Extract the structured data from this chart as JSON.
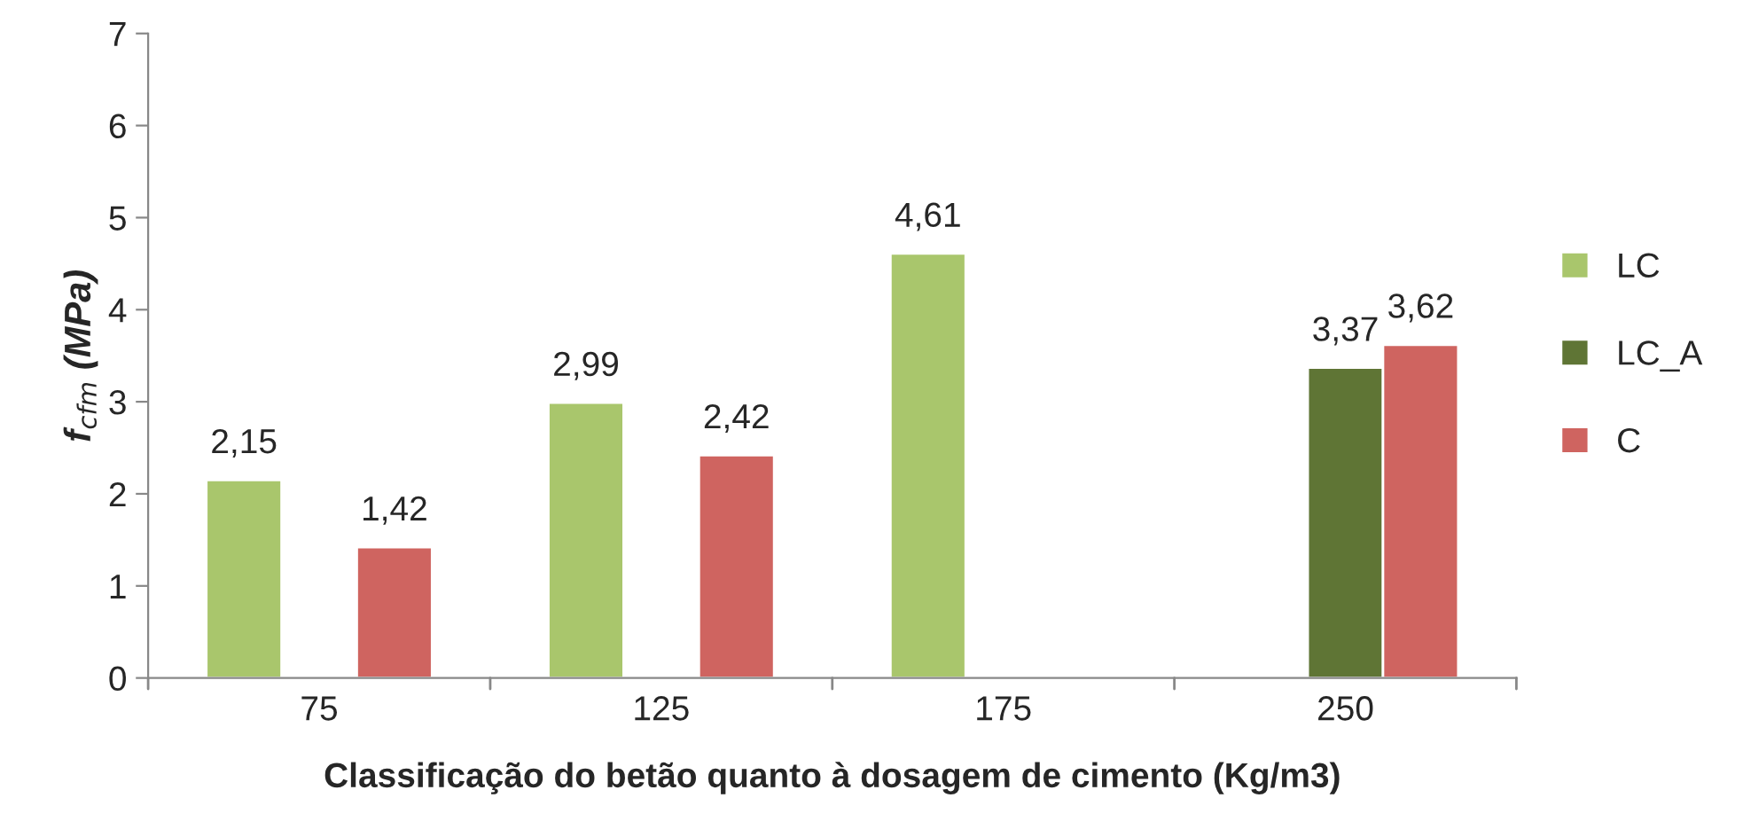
{
  "chart_data": {
    "type": "bar",
    "xlabel": "Classificação do betão quanto à dosagem de cimento (Kg/m3)",
    "ylabel": "f$_{cfm}$ (MPa)",
    "categories": [
      "75",
      "125",
      "175",
      "250"
    ],
    "series": [
      {
        "name": "LC",
        "color": "#a9c66c",
        "values": [
          2.15,
          2.99,
          4.61,
          null
        ],
        "value_labels": [
          "2,15",
          "2,99",
          "4,61",
          null
        ]
      },
      {
        "name": "LC_A",
        "color": "#5f7535",
        "values": [
          null,
          null,
          null,
          3.37
        ],
        "value_labels": [
          null,
          null,
          null,
          "3,37"
        ]
      },
      {
        "name": "C",
        "color": "#cf6460",
        "values": [
          1.42,
          2.42,
          null,
          3.62
        ],
        "value_labels": [
          "1,42",
          "2,42",
          null,
          "3,62"
        ]
      }
    ],
    "ylim": [
      0,
      7
    ],
    "yticks": [
      0,
      1,
      2,
      3,
      4,
      5,
      6,
      7
    ],
    "grid": false,
    "legend": "right"
  }
}
